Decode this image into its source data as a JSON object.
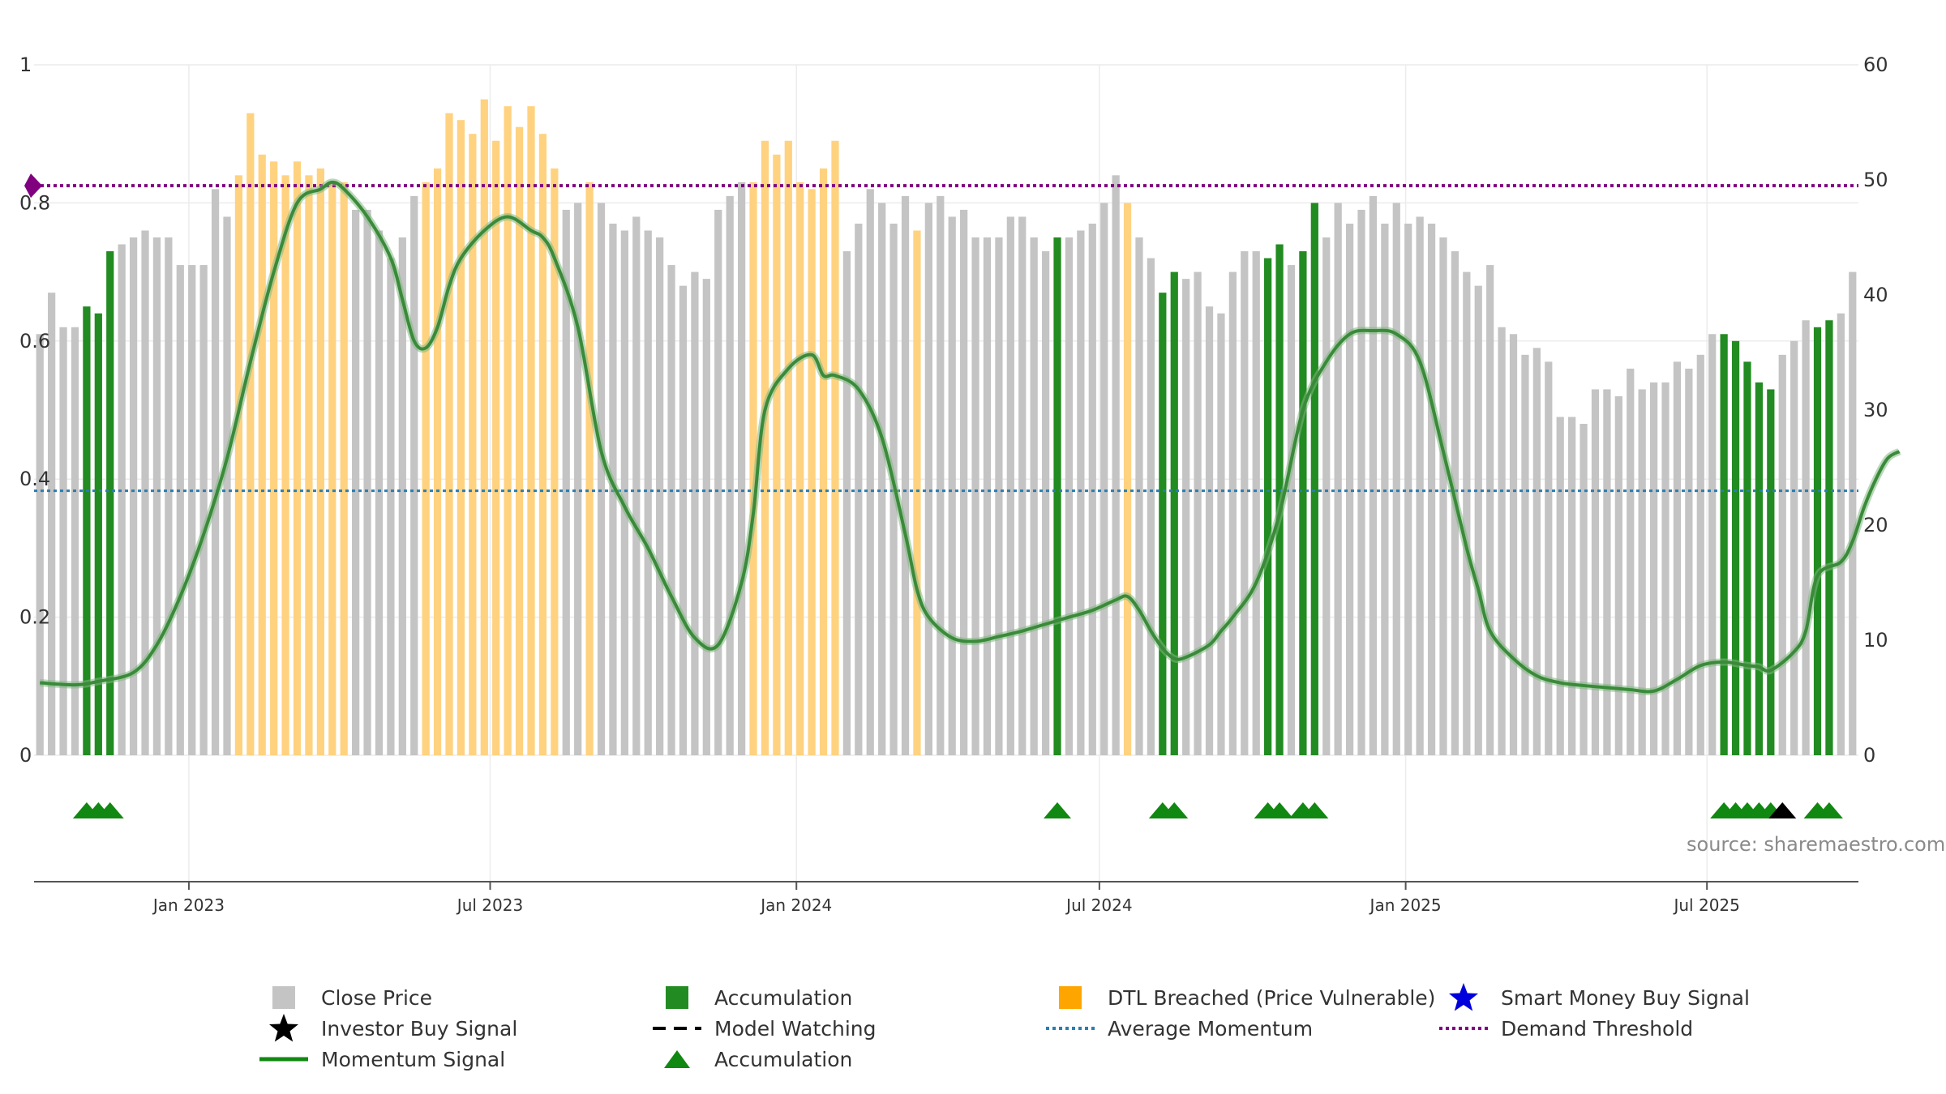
{
  "chart_data": {
    "type": "bar",
    "title": "",
    "source": "source: sharemaestro.com",
    "left_axis": {
      "range": [
        0,
        1
      ],
      "ticks": [
        "0",
        "0.2",
        "0.4",
        "0.6",
        "0.8",
        "1"
      ],
      "tick_values": [
        0,
        0.2,
        0.4,
        0.6,
        0.8,
        1.0
      ]
    },
    "right_axis": {
      "range": [
        0,
        60
      ],
      "ticks": [
        "0",
        "10",
        "20",
        "30",
        "40",
        "50",
        "60"
      ],
      "tick_values": [
        0,
        10,
        20,
        30,
        40,
        50,
        60
      ]
    },
    "x_axis": {
      "start": "2022-09-30",
      "end": "2025-09-30",
      "ticks": [
        {
          "label": "Jan 2023",
          "date": "2023-01-01"
        },
        {
          "label": "Jul 2023",
          "date": "2023-07-01"
        },
        {
          "label": "Jan 2024",
          "date": "2024-01-01"
        },
        {
          "label": "Jul 2024",
          "date": "2024-07-01"
        },
        {
          "label": "Jan 2025",
          "date": "2025-01-01"
        },
        {
          "label": "Jul 2025",
          "date": "2025-07-01"
        }
      ]
    },
    "grid": true,
    "colors": {
      "close_price": "#c4c4c4",
      "accumulation": "#228B22",
      "dtl_breached": "#ffd280",
      "momentum": "#3a8a3a",
      "average_momentum": "#2a7db0",
      "demand_threshold": "#800080",
      "investor_signal": "#000000",
      "smart_money": "#0000dd",
      "marker_accumulation": "#118811"
    },
    "bars": {
      "values": [
        0.61,
        0.67,
        0.62,
        0.62,
        0.65,
        0.64,
        0.73,
        0.74,
        0.75,
        0.76,
        0.75,
        0.75,
        0.71,
        0.71,
        0.71,
        0.82,
        0.78,
        0.84,
        0.93,
        0.87,
        0.86,
        0.84,
        0.86,
        0.84,
        0.85,
        0.83,
        0.83,
        0.79,
        0.79,
        0.76,
        0.72,
        0.75,
        0.81,
        0.83,
        0.85,
        0.93,
        0.92,
        0.9,
        0.95,
        0.89,
        0.94,
        0.91,
        0.94,
        0.9,
        0.85,
        0.79,
        0.8,
        0.83,
        0.8,
        0.77,
        0.76,
        0.78,
        0.76,
        0.75,
        0.71,
        0.68,
        0.7,
        0.69,
        0.79,
        0.81,
        0.83,
        0.83,
        0.89,
        0.87,
        0.89,
        0.83,
        0.82,
        0.85,
        0.89,
        0.73,
        0.77,
        0.82,
        0.8,
        0.77,
        0.81,
        0.76,
        0.8,
        0.81,
        0.78,
        0.79,
        0.75,
        0.75,
        0.75,
        0.78,
        0.78,
        0.75,
        0.73,
        0.75,
        0.75,
        0.76,
        0.77,
        0.8,
        0.84,
        0.8,
        0.75,
        0.72,
        0.67,
        0.7,
        0.69,
        0.7,
        0.65,
        0.64,
        0.7,
        0.73,
        0.73,
        0.72,
        0.74,
        0.71,
        0.73,
        0.8,
        0.75,
        0.8,
        0.77,
        0.79,
        0.81,
        0.77,
        0.8,
        0.77,
        0.78,
        0.77,
        0.75,
        0.73,
        0.7,
        0.68,
        0.71,
        0.62,
        0.61,
        0.58,
        0.59,
        0.57,
        0.49,
        0.49,
        0.48,
        0.53,
        0.53,
        0.52,
        0.56,
        0.53,
        0.54,
        0.54,
        0.57,
        0.56,
        0.58,
        0.61,
        0.61,
        0.6,
        0.57,
        0.54,
        0.53,
        0.58,
        0.6,
        0.63,
        0.62,
        0.63,
        0.64,
        0.7
      ],
      "accumulation_index": [
        4,
        5,
        6,
        87,
        96,
        97,
        105,
        106,
        108,
        109,
        144,
        145,
        146,
        147,
        148,
        152,
        153
      ],
      "dtl_index": [
        17,
        18,
        19,
        20,
        21,
        22,
        23,
        24,
        25,
        26,
        33,
        34,
        35,
        36,
        37,
        38,
        39,
        40,
        41,
        42,
        43,
        44,
        47,
        61,
        62,
        63,
        64,
        65,
        66,
        67,
        68,
        75,
        93
      ]
    },
    "momentum_signal": {
      "x_index": [
        0,
        3,
        5,
        8,
        10,
        12,
        14,
        16,
        18,
        20,
        22,
        24,
        25,
        26,
        28,
        30,
        31,
        32,
        33,
        34,
        35,
        36,
        38,
        40,
        42,
        43,
        44,
        46,
        48,
        50,
        52,
        54,
        56,
        58,
        60,
        61,
        62,
        64,
        66,
        67,
        68,
        70,
        72,
        74,
        75,
        76,
        78,
        80,
        82,
        84,
        85,
        86,
        88,
        90,
        92,
        93,
        94,
        95,
        96,
        97,
        98,
        100,
        101,
        102,
        104,
        106,
        108,
        110,
        112,
        114,
        116,
        118,
        120,
        122,
        123,
        124,
        126,
        128,
        130,
        132,
        134,
        136,
        138,
        140,
        142,
        144,
        146,
        147,
        148,
        150,
        151,
        152,
        154,
        155,
        156,
        157,
        158,
        159
      ],
      "values": [
        0.105,
        0.102,
        0.107,
        0.12,
        0.16,
        0.23,
        0.32,
        0.43,
        0.57,
        0.7,
        0.8,
        0.82,
        0.83,
        0.82,
        0.78,
        0.72,
        0.66,
        0.6,
        0.59,
        0.62,
        0.68,
        0.72,
        0.76,
        0.78,
        0.76,
        0.75,
        0.72,
        0.62,
        0.44,
        0.36,
        0.3,
        0.23,
        0.17,
        0.16,
        0.25,
        0.35,
        0.5,
        0.56,
        0.58,
        0.55,
        0.55,
        0.53,
        0.46,
        0.32,
        0.24,
        0.2,
        0.17,
        0.165,
        0.172,
        0.18,
        0.185,
        0.19,
        0.2,
        0.21,
        0.225,
        0.23,
        0.21,
        0.18,
        0.155,
        0.14,
        0.142,
        0.16,
        0.18,
        0.2,
        0.25,
        0.35,
        0.5,
        0.57,
        0.61,
        0.615,
        0.61,
        0.57,
        0.44,
        0.3,
        0.24,
        0.18,
        0.14,
        0.115,
        0.105,
        0.101,
        0.098,
        0.095,
        0.093,
        0.11,
        0.13,
        0.135,
        0.13,
        0.128,
        0.123,
        0.15,
        0.18,
        0.26,
        0.28,
        0.31,
        0.36,
        0.4,
        0.43,
        0.44
      ]
    },
    "average_momentum": 0.383,
    "demand_threshold": 0.825,
    "accumulation_marker_index": [
      4,
      5,
      6,
      87,
      96,
      97,
      105,
      106,
      108,
      109,
      144,
      145,
      146,
      147,
      148,
      152,
      153
    ],
    "investor_buy_signal_index": [
      149
    ],
    "legend": [
      {
        "label": "Close Price",
        "symbol": "square-gray"
      },
      {
        "label": "Accumulation",
        "symbol": "square-green"
      },
      {
        "label": "DTL Breached (Price Vulnerable)",
        "symbol": "square-orange"
      },
      {
        "label": "Smart Money Buy Signal",
        "symbol": "star-blue"
      },
      {
        "label": "Investor Buy Signal",
        "symbol": "star-black"
      },
      {
        "label": "Model Watching",
        "symbol": "dash-black"
      },
      {
        "label": "Average Momentum",
        "symbol": "dot-blue"
      },
      {
        "label": "Demand Threshold",
        "symbol": "dot-purple"
      },
      {
        "label": "Momentum Signal",
        "symbol": "line-green"
      },
      {
        "label": "Accumulation",
        "symbol": "triangle-green"
      }
    ]
  }
}
